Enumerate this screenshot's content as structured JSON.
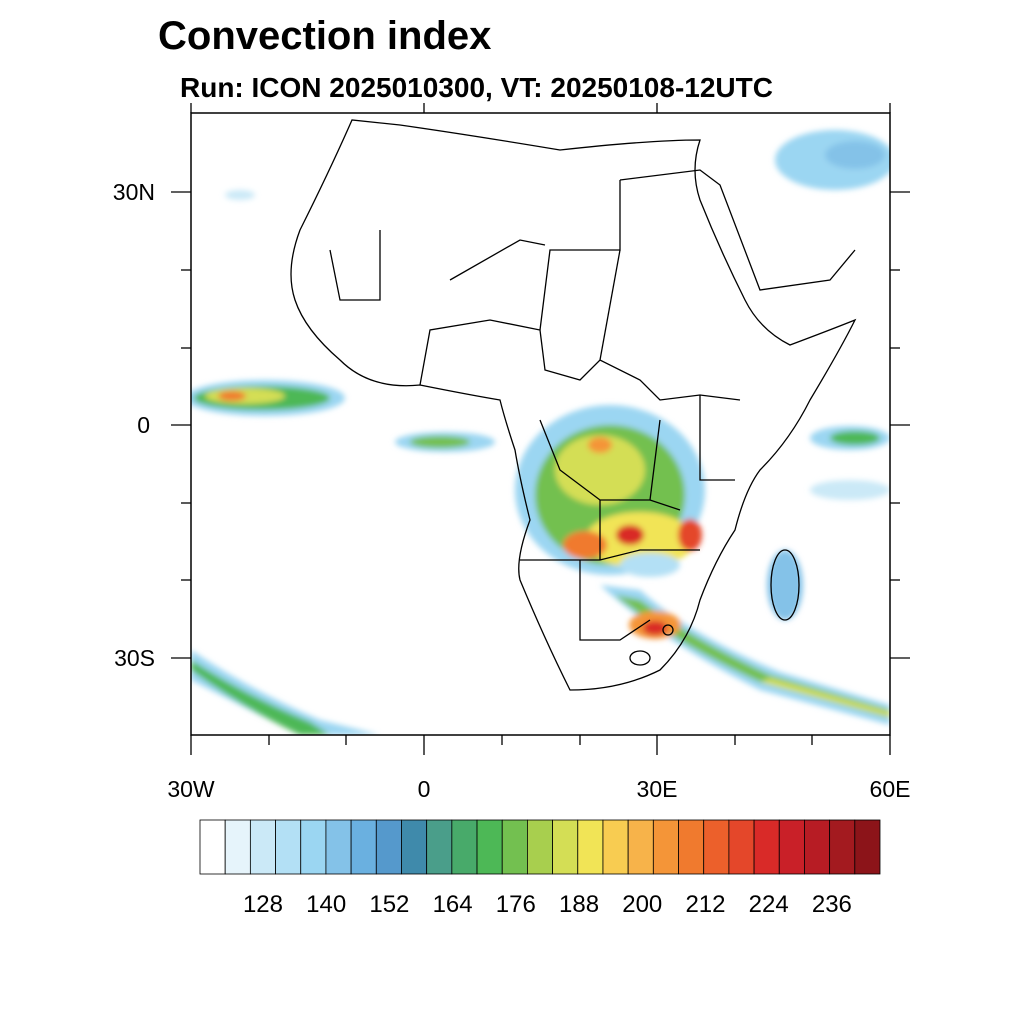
{
  "header": {
    "title": "Convection index",
    "subtitle": "Run: ICON 2025010300,  VT: 20250108-12UTC"
  },
  "map": {
    "region": "Africa",
    "projection": "cylindrical equidistant",
    "lon_range": [
      -30,
      60
    ],
    "lat_range": [
      -40,
      40
    ],
    "lat_tick_labels": [
      "30N",
      "0",
      "30S"
    ],
    "lon_tick_labels": [
      "30W",
      "0",
      "30E",
      "60E"
    ],
    "field": "convection index"
  },
  "colorbar": {
    "labels": [
      "128",
      "140",
      "152",
      "164",
      "176",
      "188",
      "200",
      "212",
      "224",
      "236"
    ],
    "colors": [
      "#ffffff",
      "#e6f4fb",
      "#cbe9f7",
      "#b3e0f5",
      "#9bd6f2",
      "#84c2e8",
      "#6ab0e0",
      "#5599cc",
      "#3f8aab",
      "#4a9e8a",
      "#48aa6a",
      "#4db856",
      "#73c050",
      "#a8cf4e",
      "#d4de55",
      "#f1e456",
      "#f8cc51",
      "#f7b34a",
      "#f49538",
      "#f07a2e",
      "#ec602b",
      "#e4472a",
      "#d92a28",
      "#c92028",
      "#b71c24",
      "#a31a1f",
      "#8c1419"
    ]
  }
}
